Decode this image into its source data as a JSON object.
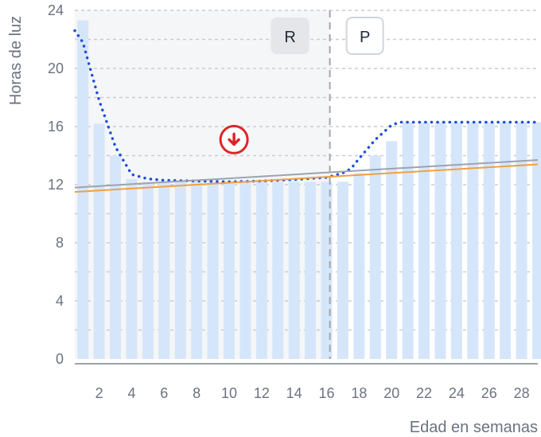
{
  "chart_data": {
    "type": "bar",
    "ylabel": "Horas de luz",
    "xlabel": "Edad en semanas",
    "ylim": [
      0,
      24
    ],
    "yticks": [
      0,
      4,
      8,
      12,
      16,
      20,
      24
    ],
    "xticks": [
      2,
      4,
      6,
      8,
      10,
      12,
      14,
      16,
      18,
      20,
      22,
      24,
      26,
      28
    ],
    "xlim": [
      0.5,
      29
    ],
    "weeks": [
      1,
      2,
      3,
      4,
      5,
      6,
      7,
      8,
      9,
      10,
      11,
      12,
      13,
      14,
      15,
      16,
      17,
      18,
      19,
      20,
      21,
      22,
      23,
      24,
      25,
      26,
      27,
      28,
      29
    ],
    "bar_values": [
      23.3,
      16.2,
      14,
      12.4,
      12.2,
      12.2,
      12.2,
      12.2,
      12.2,
      12.2,
      12.2,
      12.2,
      12.2,
      12.2,
      12.2,
      12.2,
      12.2,
      12.8,
      14,
      15,
      16.3,
      16.3,
      16.3,
      16.3,
      16.3,
      16.3,
      16.3,
      16.3,
      16.3
    ],
    "series": [
      {
        "type": "dotted-line",
        "color": "#1d4ed8",
        "x": [
          0.5,
          1,
          2,
          3,
          4,
          5,
          6,
          8,
          10,
          12,
          14,
          16,
          17,
          17.5,
          18,
          19,
          20,
          20.5,
          21,
          22,
          24,
          26,
          28,
          29
        ],
        "y": [
          22.6,
          21.8,
          17.8,
          14.6,
          12.7,
          12.4,
          12.3,
          12.25,
          12.2,
          12.25,
          12.35,
          12.5,
          12.8,
          13.1,
          13.8,
          15.1,
          16.1,
          16.3,
          16.3,
          16.3,
          16.3,
          16.3,
          16.3,
          16.3
        ]
      },
      {
        "type": "line",
        "color": "#9ca3af",
        "x": [
          0.5,
          29
        ],
        "y": [
          11.8,
          13.7
        ]
      },
      {
        "type": "line",
        "color": "#f0a040",
        "x": [
          0.5,
          29
        ],
        "y": [
          11.5,
          13.4
        ]
      }
    ],
    "phase_divider_week": 16.2,
    "phases": [
      {
        "label": "R",
        "shaded": true
      },
      {
        "label": "P",
        "shaded": false
      }
    ],
    "marker": {
      "week": 10.3,
      "value": 15.1,
      "icon": "down-arrow-circle-icon",
      "color": "#dc2626"
    },
    "grid": true,
    "colors": {
      "bar": "#d6e6fa",
      "grid": "#c9ccd1",
      "shade": "#f5f6f7",
      "badge_r": "#e4e6ea",
      "axis": "#9ca3af"
    }
  }
}
